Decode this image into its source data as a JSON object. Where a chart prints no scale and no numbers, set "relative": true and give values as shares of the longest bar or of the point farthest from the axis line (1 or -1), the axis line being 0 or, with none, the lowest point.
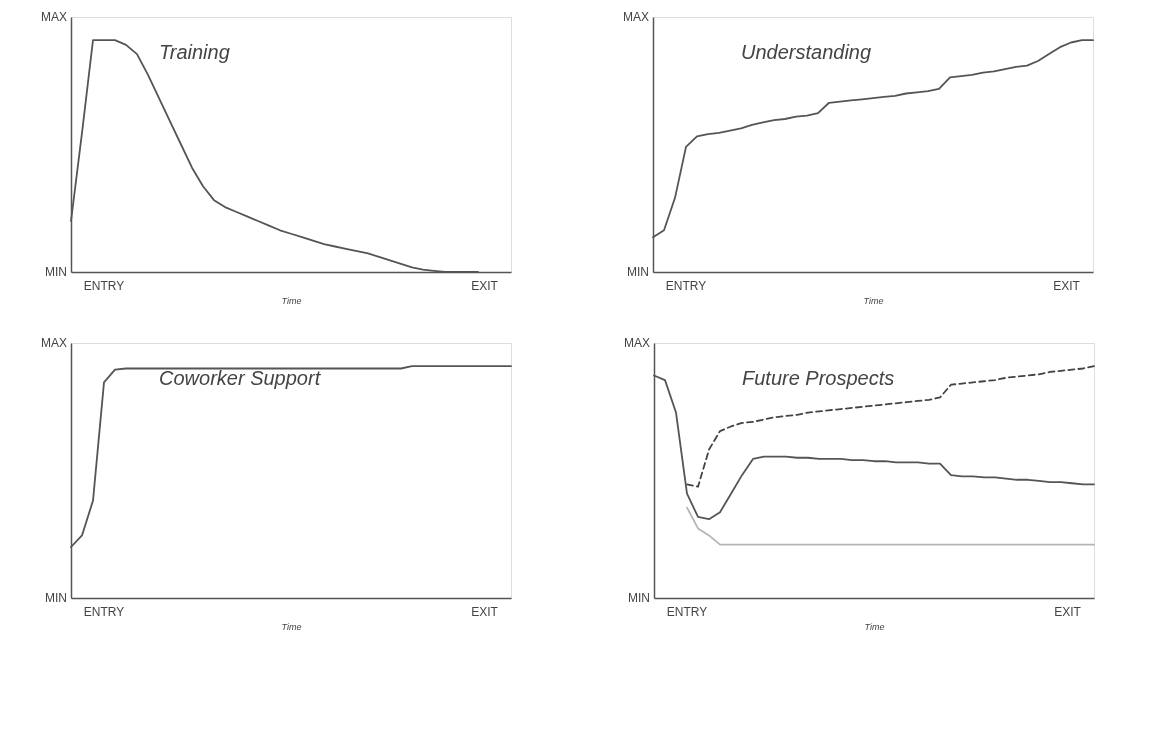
{
  "chart_data": [
    {
      "type": "line",
      "title": "Training",
      "xlabel": "Time",
      "relative": true,
      "annotations": [
        "MAX",
        "MIN",
        "ENTRY",
        "EXIT"
      ],
      "categories": [
        null,
        null,
        null,
        null,
        null,
        null,
        null,
        null,
        null,
        null,
        null,
        null,
        null,
        null,
        null,
        null,
        null,
        null,
        null,
        null,
        null,
        null,
        null,
        null,
        null,
        null,
        null,
        null,
        null,
        null,
        null,
        null,
        null,
        null,
        null,
        null,
        null,
        null,
        null,
        null,
        null
      ],
      "series": [
        {
          "color": "#555555",
          "line_style": "solid",
          "values": [
            0.22,
            0.6,
            1,
            1,
            1,
            0.98,
            0.94,
            0.85,
            0.75,
            0.65,
            0.55,
            0.45,
            0.37,
            0.31,
            0.28,
            0.26,
            0.24,
            0.22,
            0.2,
            0.18,
            0.165,
            0.15,
            0.135,
            0.12,
            0.11,
            0.1,
            0.09,
            0.08,
            0.065,
            0.05,
            0.035,
            0.02,
            0.01,
            0.005,
            0,
            0,
            0,
            0,
            null,
            null,
            null
          ]
        }
      ]
    },
    {
      "type": "line",
      "title": "Understanding",
      "xlabel": "Time",
      "relative": true,
      "annotations": [
        "MAX",
        "MIN",
        "ENTRY",
        "EXIT"
      ],
      "categories": [
        null,
        null,
        null,
        null,
        null,
        null,
        null,
        null,
        null,
        null,
        null,
        null,
        null,
        null,
        null,
        null,
        null,
        null,
        null,
        null,
        null,
        null,
        null,
        null,
        null,
        null,
        null,
        null,
        null,
        null,
        null,
        null,
        null,
        null,
        null,
        null,
        null,
        null,
        null,
        null,
        null
      ],
      "series": [
        {
          "color": "#555555",
          "line_style": "solid",
          "values": [
            0.15,
            0.18,
            0.32,
            0.54,
            0.585,
            0.595,
            0.6,
            0.61,
            0.62,
            0.635,
            0.645,
            0.655,
            0.66,
            0.67,
            0.675,
            0.685,
            0.73,
            0.735,
            0.74,
            0.745,
            0.75,
            0.755,
            0.76,
            0.77,
            0.775,
            0.78,
            0.79,
            0.84,
            0.845,
            0.85,
            0.86,
            0.865,
            0.875,
            0.885,
            0.89,
            0.91,
            0.94,
            0.97,
            0.99,
            1,
            1
          ]
        }
      ]
    },
    {
      "type": "line",
      "title": "Coworker Support",
      "xlabel": "Time",
      "relative": true,
      "annotations": [
        "MAX",
        "MIN",
        "ENTRY",
        "EXIT"
      ],
      "categories": [
        null,
        null,
        null,
        null,
        null,
        null,
        null,
        null,
        null,
        null,
        null,
        null,
        null,
        null,
        null,
        null,
        null,
        null,
        null,
        null,
        null,
        null,
        null,
        null,
        null,
        null,
        null,
        null,
        null,
        null,
        null,
        null,
        null,
        null,
        null,
        null,
        null,
        null,
        null,
        null,
        null
      ],
      "series": [
        {
          "color": "#555555",
          "line_style": "solid",
          "values": [
            0.22,
            0.27,
            0.42,
            0.93,
            0.985,
            0.99,
            0.99,
            0.99,
            0.99,
            0.99,
            0.99,
            0.99,
            0.99,
            0.99,
            0.99,
            0.99,
            0.99,
            0.99,
            0.99,
            0.99,
            0.99,
            0.99,
            0.99,
            0.99,
            0.99,
            0.99,
            0.99,
            0.99,
            0.99,
            0.99,
            0.99,
            1,
            1,
            1,
            1,
            1,
            1,
            1,
            1,
            1,
            1
          ]
        }
      ]
    },
    {
      "type": "line",
      "title": "Future Prospects",
      "xlabel": "Time",
      "relative": true,
      "annotations": [
        "MAX",
        "MIN",
        "ENTRY",
        "EXIT"
      ],
      "categories": [
        null,
        null,
        null,
        null,
        null,
        null,
        null,
        null,
        null,
        null,
        null,
        null,
        null,
        null,
        null,
        null,
        null,
        null,
        null,
        null,
        null,
        null,
        null,
        null,
        null,
        null,
        null,
        null,
        null,
        null,
        null,
        null,
        null,
        null,
        null,
        null,
        null,
        null,
        null,
        null,
        null
      ],
      "series": [
        {
          "color": "#b5b5b5",
          "line_style": "solid",
          "values": [
            null,
            null,
            null,
            0.39,
            0.3,
            0.27,
            0.23,
            0.23,
            0.23,
            0.23,
            0.23,
            0.23,
            0.23,
            0.23,
            0.23,
            0.23,
            0.23,
            0.23,
            0.23,
            0.23,
            0.23,
            0.23,
            0.23,
            0.23,
            0.23,
            0.23,
            0.23,
            0.23,
            0.23,
            0.23,
            0.23,
            0.23,
            0.23,
            0.23,
            0.23,
            0.23,
            0.23,
            0.23,
            0.23,
            0.23,
            0.23
          ]
        },
        {
          "color": "#444444",
          "line_style": "dashed",
          "values": [
            null,
            null,
            null,
            0.49,
            0.48,
            0.64,
            0.72,
            0.74,
            0.755,
            0.76,
            0.77,
            0.78,
            0.785,
            0.79,
            0.8,
            0.805,
            0.81,
            0.815,
            0.82,
            0.825,
            0.83,
            0.835,
            0.84,
            0.845,
            0.85,
            0.855,
            0.865,
            0.92,
            0.925,
            0.93,
            0.935,
            0.94,
            0.95,
            0.955,
            0.96,
            0.965,
            0.975,
            0.98,
            0.985,
            0.99,
            1
          ]
        },
        {
          "color": "#555555",
          "line_style": "solid",
          "values": [
            0.96,
            0.94,
            0.8,
            0.45,
            0.35,
            0.34,
            0.37,
            0.45,
            0.53,
            0.6,
            0.61,
            0.61,
            0.61,
            0.605,
            0.605,
            0.6,
            0.6,
            0.6,
            0.595,
            0.595,
            0.59,
            0.59,
            0.585,
            0.585,
            0.585,
            0.58,
            0.58,
            0.53,
            0.525,
            0.525,
            0.52,
            0.52,
            0.515,
            0.51,
            0.51,
            0.505,
            0.5,
            0.5,
            0.495,
            0.49,
            0.49
          ]
        }
      ]
    }
  ]
}
